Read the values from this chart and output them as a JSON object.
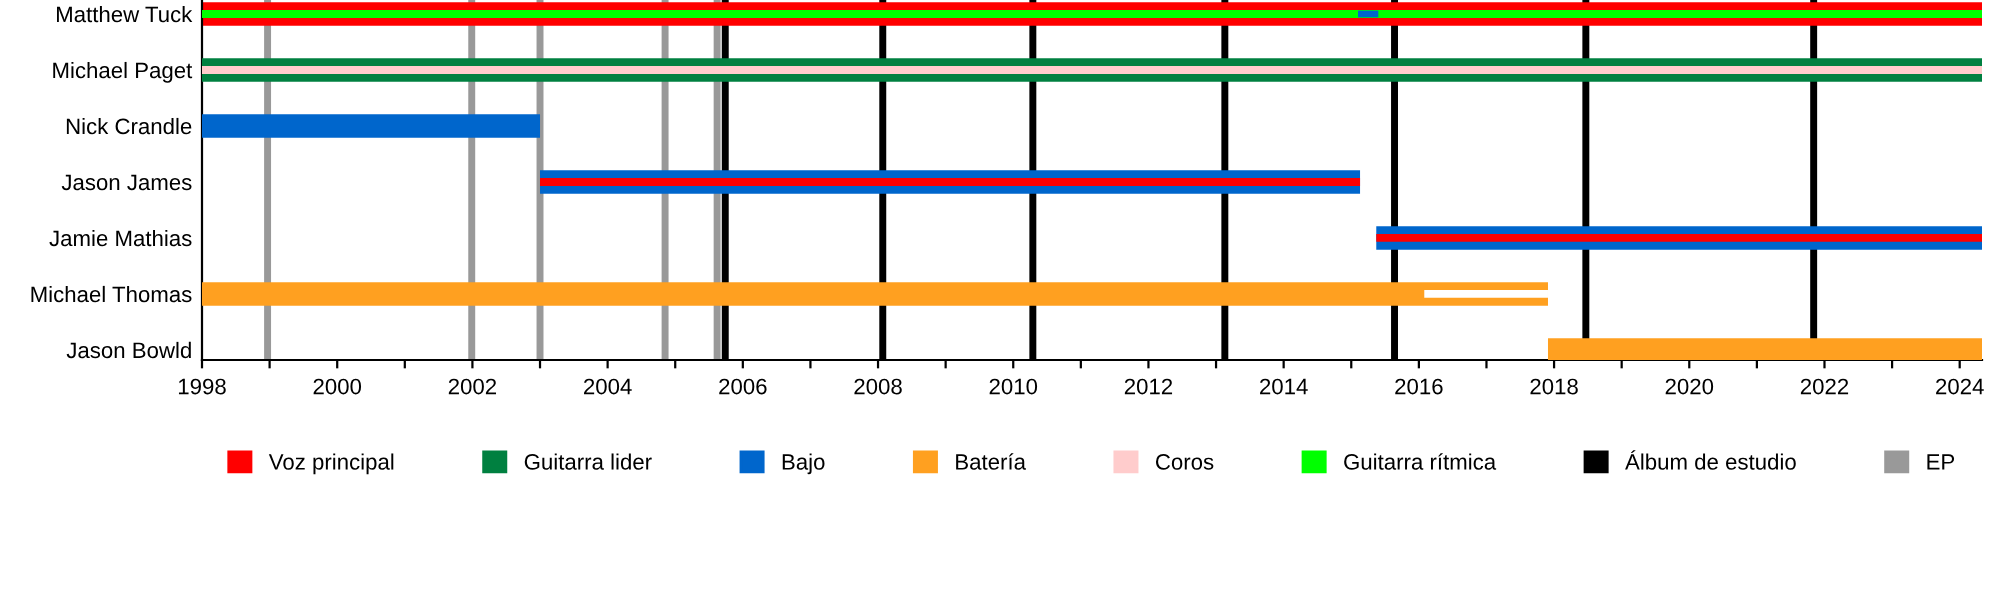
{
  "chart_data": {
    "type": "bar",
    "orientation": "horizontal",
    "categories": [
      "Matthew Tuck",
      "Michael Paget",
      "Nick Crandle",
      "Jason James",
      "Jamie Mathias",
      "Michael Thomas",
      "Jason Bowld"
    ],
    "series": [
      {
        "name": "Voz principal",
        "color": "#ff0000",
        "base": [
          1998,
          null,
          null,
          null,
          null,
          null,
          null
        ],
        "values": [
          26.33,
          null,
          null,
          null,
          null,
          null,
          null
        ]
      },
      {
        "name": "Guitarra lider",
        "color": "#008040",
        "base": [
          null,
          1998,
          null,
          null,
          null,
          null,
          null
        ],
        "values": [
          null,
          26.33,
          null,
          null,
          null,
          null,
          null
        ]
      },
      {
        "name": "Bajo",
        "color": "#0066cc",
        "base": [
          null,
          null,
          1998,
          2003.0,
          2015.37,
          null,
          null
        ],
        "values": [
          null,
          null,
          5.0,
          12.13,
          8.96,
          null,
          null
        ]
      },
      {
        "name": "Batería",
        "color": "#ffa020",
        "base": [
          null,
          null,
          null,
          null,
          null,
          1998,
          2017.91
        ],
        "values": [
          null,
          null,
          null,
          null,
          null,
          19.91,
          6.42
        ]
      },
      {
        "name": "Coros",
        "color": "#ffcccc",
        "base": [
          null,
          1998,
          null,
          null,
          null,
          null,
          null
        ],
        "values": [
          null,
          26.33,
          null,
          null,
          null,
          null,
          null
        ]
      },
      {
        "color": "#ff0000",
        "base": [
          null,
          null,
          null,
          2003.0,
          2015.37,
          null,
          null
        ],
        "values": [
          null,
          null,
          null,
          12.13,
          8.96,
          null,
          null
        ]
      },
      {
        "name": "Guitarra rítmica",
        "color": "#00ff00",
        "base": [
          1998,
          null,
          null,
          null,
          null,
          null,
          null
        ],
        "values": [
          26.33,
          null,
          null,
          null,
          null,
          null,
          null
        ]
      },
      {
        "color": "#ffffff",
        "base": [
          null,
          null,
          null,
          null,
          null,
          2016.08,
          null
        ],
        "values": [
          null,
          null,
          null,
          null,
          null,
          1.83,
          null
        ]
      },
      {
        "color": "#0066cc",
        "base": [
          2015.1,
          null,
          null,
          null,
          null,
          null,
          null
        ],
        "values": [
          0.3,
          null,
          null,
          null,
          null,
          null,
          null
        ]
      }
    ],
    "xlim": [
      1998,
      2024.33
    ],
    "xticks": [
      1998,
      {
        "value": 1999,
        "label": null
      },
      2000,
      {
        "value": 2001,
        "label": null
      },
      2002,
      {
        "value": 2003,
        "label": null
      },
      2004,
      {
        "value": 2005,
        "label": null
      },
      2006,
      {
        "value": 2007,
        "label": null
      },
      2008,
      {
        "value": 2009,
        "label": null
      },
      2010,
      {
        "value": 2011,
        "label": null
      },
      2012,
      {
        "value": 2013,
        "label": null
      },
      2014,
      {
        "value": 2015,
        "label": null
      },
      2016,
      {
        "value": 2017,
        "label": null
      },
      2018,
      {
        "value": 2019,
        "label": null
      },
      2020,
      {
        "value": 2021,
        "label": null
      },
      2022,
      {
        "value": 2023,
        "label": null
      },
      2024
    ],
    "ref_lines": [
      {
        "axis": "x",
        "value": 2005.74,
        "color": "#000000",
        "label": "Álbum de estudio"
      },
      {
        "axis": "x",
        "value": 2008.07,
        "color": "#000000"
      },
      {
        "axis": "x",
        "value": 2010.29,
        "color": "#000000"
      },
      {
        "axis": "x",
        "value": 2013.13,
        "color": "#000000"
      },
      {
        "axis": "x",
        "value": 2015.64,
        "color": "#000000"
      },
      {
        "axis": "x",
        "value": 2018.47,
        "color": "#000000"
      },
      {
        "axis": "x",
        "value": 2021.84,
        "color": "#000000"
      },
      {
        "axis": "x",
        "value": 1998.97,
        "color": "#999999",
        "label": "EP"
      },
      {
        "axis": "x",
        "value": 2001.99,
        "color": "#999999"
      },
      {
        "axis": "x",
        "value": 2003.0,
        "color": "#999999"
      },
      {
        "axis": "x",
        "value": 2004.85,
        "color": "#999999"
      },
      {
        "axis": "x",
        "value": 2005.62,
        "color": "#999999"
      }
    ],
    "grid": false,
    "legend": "bottom"
  }
}
